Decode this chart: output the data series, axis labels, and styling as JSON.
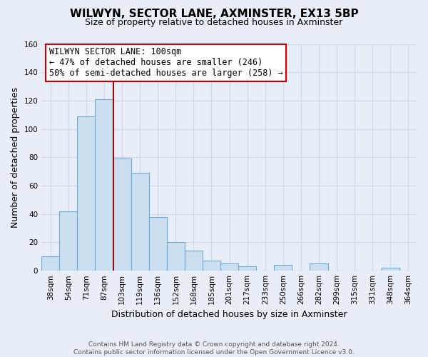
{
  "title": "WILWYN, SECTOR LANE, AXMINSTER, EX13 5BP",
  "subtitle": "Size of property relative to detached houses in Axminster",
  "xlabel": "Distribution of detached houses by size in Axminster",
  "ylabel": "Number of detached properties",
  "footer_line1": "Contains HM Land Registry data © Crown copyright and database right 2024.",
  "footer_line2": "Contains public sector information licensed under the Open Government Licence v3.0.",
  "categories": [
    "38sqm",
    "54sqm",
    "71sqm",
    "87sqm",
    "103sqm",
    "119sqm",
    "136sqm",
    "152sqm",
    "168sqm",
    "185sqm",
    "201sqm",
    "217sqm",
    "233sqm",
    "250sqm",
    "266sqm",
    "282sqm",
    "299sqm",
    "315sqm",
    "331sqm",
    "348sqm",
    "364sqm"
  ],
  "values": [
    10,
    42,
    109,
    121,
    79,
    69,
    38,
    20,
    14,
    7,
    5,
    3,
    0,
    4,
    0,
    5,
    0,
    0,
    0,
    2,
    0
  ],
  "bar_fill_color": "#ccdff0",
  "bar_edge_color": "#6aaad4",
  "vline_x_index": 4,
  "vline_color": "#aa0000",
  "annotation_title": "WILWYN SECTOR LANE: 100sqm",
  "annotation_line1": "← 47% of detached houses are smaller (246)",
  "annotation_line2": "50% of semi-detached houses are larger (258) →",
  "annotation_box_facecolor": "#ffffff",
  "annotation_box_edgecolor": "#cc0000",
  "ylim": [
    0,
    160
  ],
  "yticks": [
    0,
    20,
    40,
    60,
    80,
    100,
    120,
    140,
    160
  ],
  "grid_color": "#d0d8e8",
  "bg_color": "#e8eef8",
  "title_fontsize": 11,
  "subtitle_fontsize": 9,
  "ylabel_fontsize": 9,
  "xlabel_fontsize": 9,
  "tick_fontsize": 7.5,
  "footer_fontsize": 6.5,
  "annot_fontsize": 8.5
}
